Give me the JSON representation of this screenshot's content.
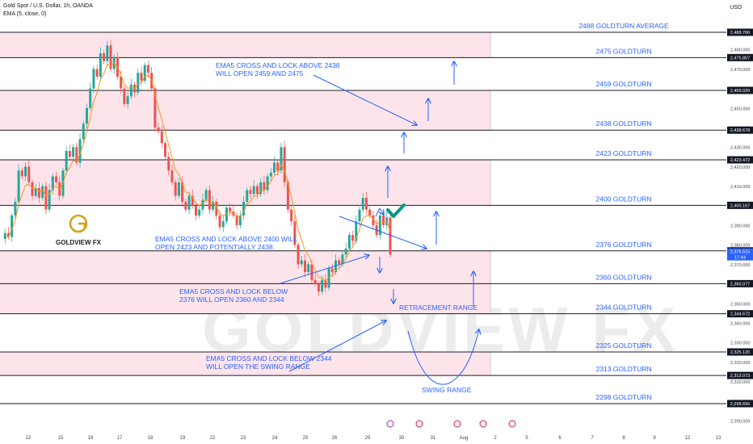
{
  "header": {
    "symbol": "Gold Spot / U.S. Dollar, 1h, OANDA",
    "indicator": "EMA (5, close, 0)",
    "currency": "USD"
  },
  "brand": {
    "logo_text": "GOLDVIEW FX",
    "watermark": "GOLDVIEW FX"
  },
  "colors": {
    "band": "#fde4ea",
    "level_line": "#1b1b2b",
    "annotation": "#2962ff",
    "up_candle": "#26a69a",
    "down_candle": "#ef5350",
    "ema": "#f7931a",
    "checkmark": "#089981",
    "gold": "#d4a017"
  },
  "chart_data": {
    "type": "candlestick",
    "instrument": "Gold Spot / U.S. Dollar",
    "timeframe": "1h",
    "y_ticks": [
      2290,
      2300,
      2310,
      2320,
      2330,
      2340,
      2350,
      2360,
      2370,
      2380,
      2390,
      2400,
      2410,
      2420,
      2430,
      2440,
      2450,
      2460,
      2470,
      2480
    ],
    "y_tick_labels": [
      "2,290.000",
      "2,300.000",
      "2,310.000",
      "2,320.000",
      "2,330.000",
      "2,340.000",
      "2,350.000",
      "2,360.000",
      "2,370.000",
      "2,380.000",
      "2,390.000",
      "2,400.000",
      "2,410.000",
      "2,420.000",
      "2,430.000",
      "2,440.000",
      "2,450.000",
      "2,460.000",
      "2,470.000",
      "2,480.000"
    ],
    "x_ticks": [
      "12",
      "15",
      "16",
      "17",
      "18",
      "19",
      "22",
      "23",
      "24",
      "25",
      "26",
      "29",
      "30",
      "31",
      "Aug",
      "2",
      "5",
      "6",
      "7",
      "8",
      "9",
      "12",
      "13"
    ],
    "levels": [
      {
        "name": "2488 GOLDTURN AVERAGE",
        "price": 2488.766,
        "badge": "2,488.766"
      },
      {
        "name": "2475 GOLDTURN",
        "price": 2475.807,
        "badge": "2,475.807"
      },
      {
        "name": "2459 GOLDTURN",
        "price": 2459.02,
        "badge": "2,459.020"
      },
      {
        "name": "2438 GOLDTURN",
        "price": 2438.678,
        "badge": "2,438.678"
      },
      {
        "name": "2423 GOLDTURN",
        "price": 2423.472,
        "badge": "2,423.472"
      },
      {
        "name": "2400 GOLDTURN",
        "price": 2400.167,
        "badge": "2,400.167"
      },
      {
        "name": "2376 GOLDTURN",
        "price": 2376.863,
        "badge": "2,376.863"
      },
      {
        "name": "2360 GOLDTURN",
        "price": 2360.077,
        "badge": "2,360.077"
      },
      {
        "name": "2344 GOLDTURN",
        "price": 2344.672,
        "badge": "2,344.672"
      },
      {
        "name": "2325 GOLDTURN",
        "price": 2325.12,
        "badge": "2,325.120"
      },
      {
        "name": "2313 GOLDTURN",
        "price": 2313.073,
        "badge": "2,313.073"
      },
      {
        "name": "2298 GOLDTURN",
        "price": 2298.656,
        "badge": "2,298.656"
      }
    ],
    "bands": [
      [
        2475.807,
        2488.766
      ],
      [
        2438.678,
        2459.02
      ],
      [
        2400.167,
        2423.472
      ],
      [
        2344.672,
        2376.863
      ],
      [
        2313.073,
        2325.12
      ]
    ],
    "current_price": {
      "value": 2376.515,
      "badge": "2,376.515",
      "countdown": "17:44"
    },
    "annotations": [
      "EMA5 CROSS AND LOCK ABOVE 2438",
      "WILL OPEN 2459 AND 2475",
      "EMA5 CROSS AND LOCK ABOVE 2400 WILL",
      "OPEN 2423 AND POTENTIALLY  2438",
      "EMA5 CROSS AND LOCK BELOW",
      "2376 WILL OPEN 2360 AND 2344",
      "EMA5 CROSS AND LOCK BELOW 2344",
      "WILL OPEN THE SWING RANGE",
      "RETRACEMENT RANGE",
      "SWING RANGE"
    ],
    "price_path": [
      2383,
      2386,
      2384,
      2395,
      2402,
      2418,
      2415,
      2420,
      2412,
      2405,
      2409,
      2404,
      2410,
      2398,
      2408,
      2415,
      2412,
      2405,
      2418,
      2428,
      2425,
      2430,
      2422,
      2434,
      2442,
      2450,
      2460,
      2470,
      2466,
      2478,
      2474,
      2482,
      2470,
      2476,
      2466,
      2460,
      2452,
      2456,
      2462,
      2458,
      2468,
      2464,
      2472,
      2468,
      2460,
      2440,
      2438,
      2432,
      2425,
      2418,
      2412,
      2405,
      2412,
      2402,
      2398,
      2405,
      2400,
      2395,
      2398,
      2403,
      2408,
      2398,
      2402,
      2395,
      2389,
      2392,
      2399,
      2397,
      2395,
      2390,
      2395,
      2402,
      2408,
      2406,
      2410,
      2406,
      2412,
      2408,
      2415,
      2417,
      2422,
      2418,
      2430,
      2412,
      2398,
      2392,
      2380,
      2370,
      2372,
      2366,
      2370,
      2362,
      2360,
      2356,
      2362,
      2358,
      2368,
      2366,
      2372,
      2370,
      2375,
      2378,
      2385,
      2382,
      2392,
      2398,
      2404,
      2398,
      2395,
      2390,
      2385,
      2395,
      2390,
      2394,
      2375
    ]
  }
}
